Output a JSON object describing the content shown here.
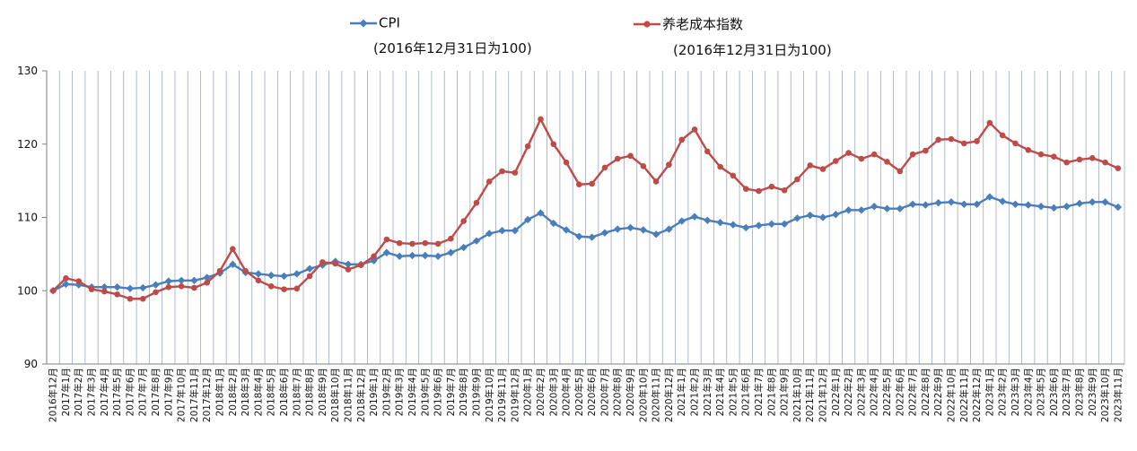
{
  "chart_data": {
    "type": "line",
    "title": "",
    "xlabel": "",
    "ylabel": "",
    "ylim": [
      90,
      130
    ],
    "yticks": [
      90,
      100,
      110,
      120,
      130
    ],
    "grid": {
      "vertical": true,
      "horizontal": false
    },
    "legend_position": "top",
    "categories": [
      "2016年12月",
      "2017年1月",
      "2017年2月",
      "2017年3月",
      "2017年4月",
      "2017年5月",
      "2017年6月",
      "2017年7月",
      "2017年8月",
      "2017年9月",
      "2017年10月",
      "2017年11月",
      "2017年12月",
      "2018年1月",
      "2018年2月",
      "2018年3月",
      "2018年4月",
      "2018年5月",
      "2018年6月",
      "2018年7月",
      "2018年8月",
      "2018年9月",
      "2018年10月",
      "2018年11月",
      "2018年12月",
      "2019年1月",
      "2019年2月",
      "2019年3月",
      "2019年4月",
      "2019年5月",
      "2019年6月",
      "2019年7月",
      "2019年8月",
      "2019年9月",
      "2019年10月",
      "2019年11月",
      "2019年12月",
      "2020年1月",
      "2020年2月",
      "2020年3月",
      "2020年4月",
      "2020年5月",
      "2020年6月",
      "2020年7月",
      "2020年8月",
      "2020年9月",
      "2020年10月",
      "2020年11月",
      "2020年12月",
      "2021年1月",
      "2021年2月",
      "2021年3月",
      "2021年4月",
      "2021年5月",
      "2021年6月",
      "2021年7月",
      "2021年8月",
      "2021年9月",
      "2021年10月",
      "2021年11月",
      "2021年12月",
      "2022年1月",
      "2022年2月",
      "2022年3月",
      "2022年4月",
      "2022年5月",
      "2022年6月",
      "2022年7月",
      "2022年8月",
      "2022年9月",
      "2022年10月",
      "2022年11月",
      "2022年12月",
      "2023年1月",
      "2023年2月",
      "2023年3月",
      "2023年4月",
      "2023年5月",
      "2023年6月",
      "2023年7月",
      "2023年8月",
      "2023年9月",
      "2023年10月",
      "2023年11月"
    ],
    "series": [
      {
        "name": "CPI",
        "note": "(2016年12月31日为100)",
        "color": "#4a7ebb",
        "marker": "diamond",
        "values": [
          100.0,
          100.9,
          100.8,
          100.5,
          100.5,
          100.5,
          100.3,
          100.4,
          100.8,
          101.3,
          101.4,
          101.4,
          101.8,
          102.4,
          103.6,
          102.5,
          102.3,
          102.1,
          102.0,
          102.3,
          103.0,
          103.5,
          104.0,
          103.6,
          103.6,
          104.1,
          105.2,
          104.7,
          104.8,
          104.8,
          104.7,
          105.2,
          105.9,
          106.8,
          107.8,
          108.2,
          108.2,
          109.7,
          110.6,
          109.2,
          108.3,
          107.4,
          107.3,
          107.9,
          108.4,
          108.6,
          108.3,
          107.7,
          108.4,
          109.5,
          110.1,
          109.6,
          109.3,
          109.0,
          108.6,
          108.9,
          109.1,
          109.1,
          109.9,
          110.3,
          110.0,
          110.4,
          111.0,
          111.0,
          111.5,
          111.2,
          111.2,
          111.8,
          111.7,
          112.0,
          112.1,
          111.8,
          111.8,
          112.8,
          112.2,
          111.8,
          111.7,
          111.5,
          111.3,
          111.5,
          111.9,
          112.1,
          112.1,
          111.4
        ]
      },
      {
        "name": "养老成本指数",
        "note": "(2016年12月31日为100)",
        "color": "#be4b48",
        "marker": "circle",
        "values": [
          100.0,
          101.7,
          101.3,
          100.2,
          99.9,
          99.5,
          98.9,
          98.9,
          99.8,
          100.5,
          100.6,
          100.4,
          101.1,
          102.7,
          105.7,
          102.7,
          101.4,
          100.6,
          100.2,
          100.3,
          102.0,
          103.9,
          103.7,
          102.9,
          103.5,
          104.7,
          107.0,
          106.5,
          106.4,
          106.5,
          106.4,
          107.1,
          109.5,
          112.0,
          114.9,
          116.3,
          116.1,
          119.7,
          123.4,
          120.0,
          117.5,
          114.5,
          114.6,
          116.8,
          118.0,
          118.4,
          117.0,
          114.9,
          117.2,
          120.6,
          122.0,
          119.0,
          116.9,
          115.7,
          113.9,
          113.6,
          114.2,
          113.7,
          115.2,
          117.1,
          116.6,
          117.7,
          118.8,
          118.0,
          118.6,
          117.6,
          116.3,
          118.6,
          119.1,
          120.6,
          120.7,
          120.1,
          120.4,
          122.9,
          121.2,
          120.1,
          119.2,
          118.6,
          118.3,
          117.5,
          117.9,
          118.1,
          117.5,
          116.7
        ]
      }
    ]
  }
}
